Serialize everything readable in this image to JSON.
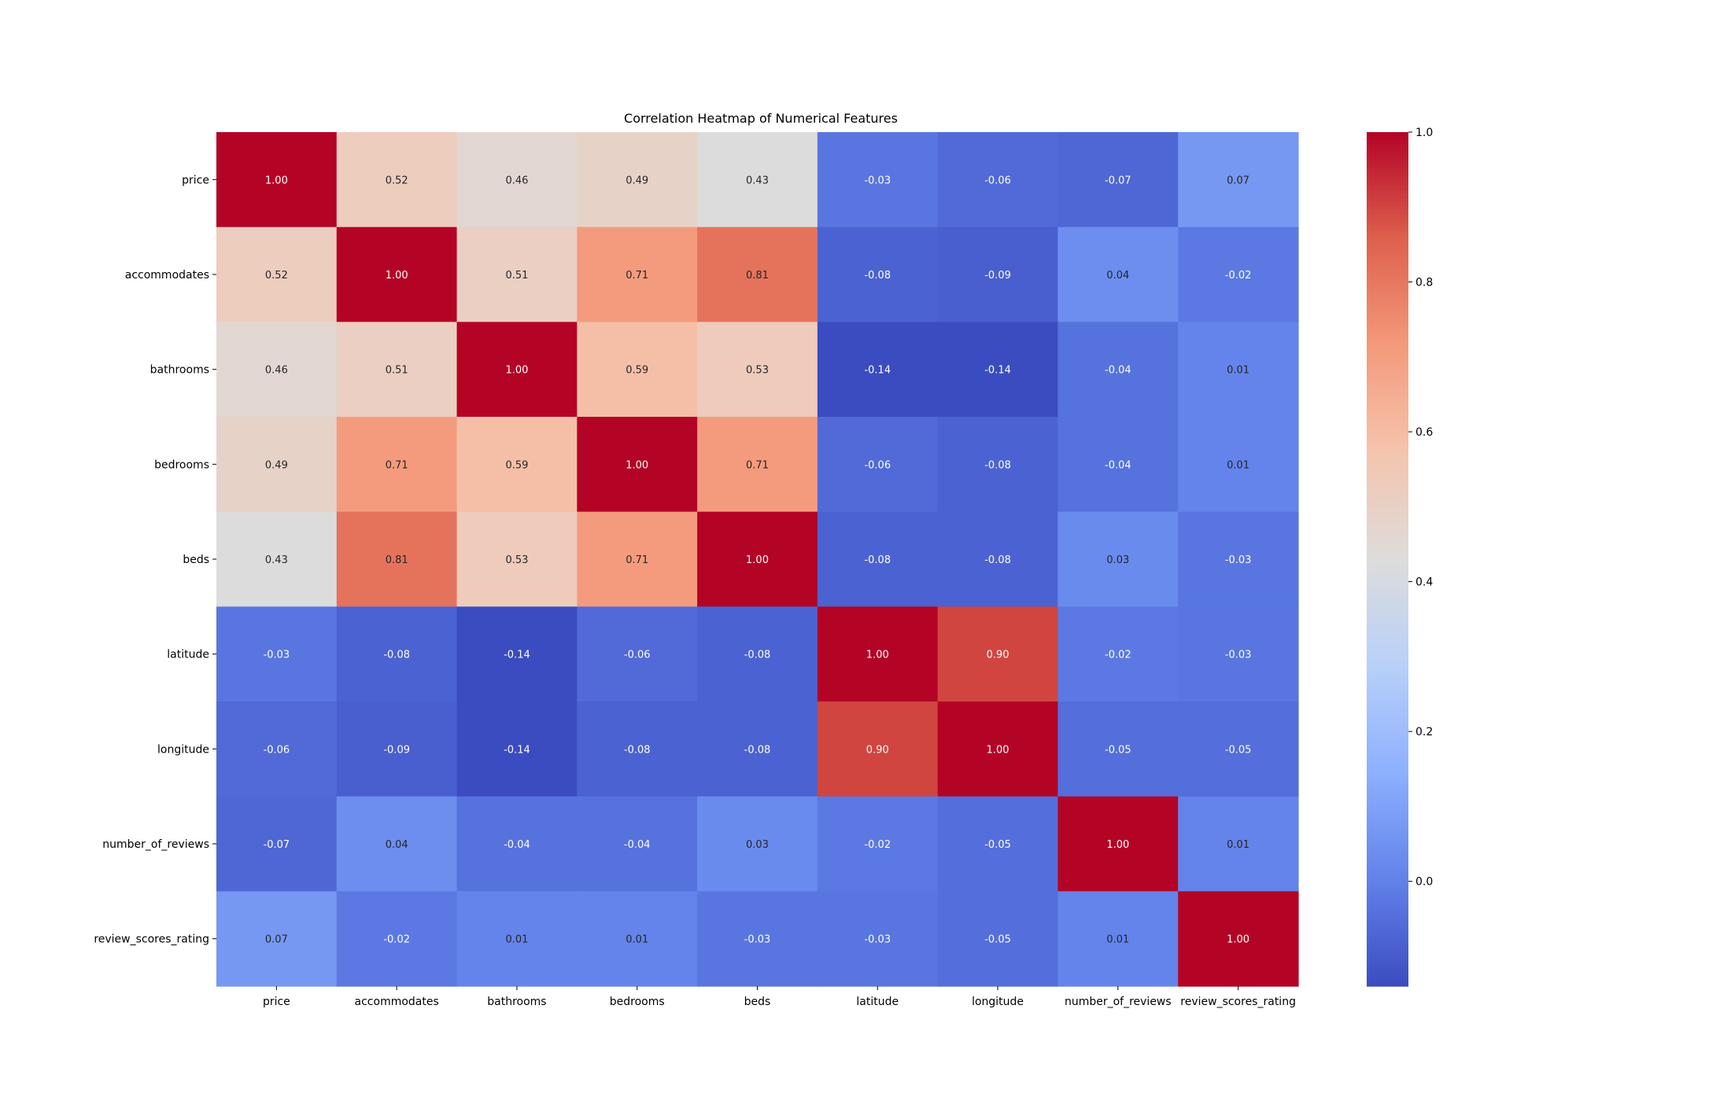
{
  "chart_data": {
    "type": "heatmap",
    "title": "Correlation Heatmap of Numerical Features",
    "variables": [
      "price",
      "accommodates",
      "bathrooms",
      "bedrooms",
      "beds",
      "latitude",
      "longitude",
      "number_of_reviews",
      "review_scores_rating"
    ],
    "matrix": [
      [
        1.0,
        0.52,
        0.46,
        0.49,
        0.43,
        -0.03,
        -0.06,
        -0.07,
        0.07
      ],
      [
        0.52,
        1.0,
        0.51,
        0.71,
        0.81,
        -0.08,
        -0.09,
        0.04,
        -0.02
      ],
      [
        0.46,
        0.51,
        1.0,
        0.59,
        0.53,
        -0.14,
        -0.14,
        -0.04,
        0.01
      ],
      [
        0.49,
        0.71,
        0.59,
        1.0,
        0.71,
        -0.06,
        -0.08,
        -0.04,
        0.01
      ],
      [
        0.43,
        0.81,
        0.53,
        0.71,
        1.0,
        -0.08,
        -0.08,
        0.03,
        -0.03
      ],
      [
        -0.03,
        -0.08,
        -0.14,
        -0.06,
        -0.08,
        1.0,
        0.9,
        -0.02,
        -0.03
      ],
      [
        -0.06,
        -0.09,
        -0.14,
        -0.08,
        -0.08,
        0.9,
        1.0,
        -0.05,
        -0.05
      ],
      [
        -0.07,
        0.04,
        -0.04,
        -0.04,
        0.03,
        -0.02,
        -0.05,
        1.0,
        0.01
      ],
      [
        0.07,
        -0.02,
        0.01,
        0.01,
        -0.03,
        -0.03,
        -0.05,
        0.01,
        1.0
      ]
    ],
    "colormap": "coolwarm",
    "vmin": -0.14,
    "vmax": 1.0,
    "colorbar_ticks": [
      0.0,
      0.2,
      0.4,
      0.6,
      0.8,
      1.0
    ],
    "colorbar_tick_labels": [
      "0.0",
      "0.2",
      "0.4",
      "0.6",
      "0.8",
      "1.0"
    ],
    "annotation_format": "0.00",
    "legend": "colorbar-right",
    "grid": false
  }
}
